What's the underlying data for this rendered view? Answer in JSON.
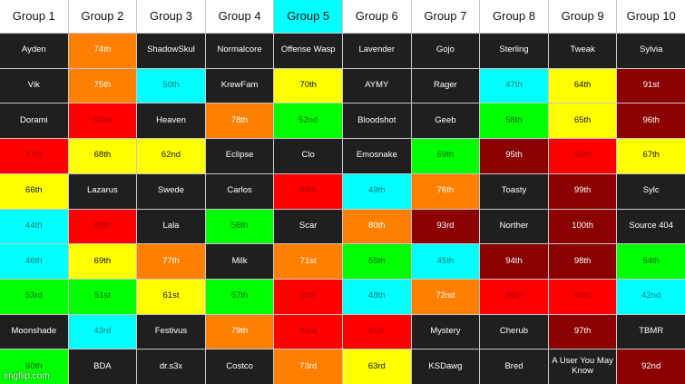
{
  "palette": {
    "dark": "#1f1f1f",
    "orange": "#ff7f00",
    "cyan": "#00ffff",
    "yellow": "#ffff00",
    "green": "#00ff00",
    "red": "#ff0000",
    "maroon": "#8b0000",
    "white": "#ffffff"
  },
  "headers": [
    {
      "label": "Group 1",
      "color": "white"
    },
    {
      "label": "Group 2",
      "color": "white"
    },
    {
      "label": "Group 3",
      "color": "white"
    },
    {
      "label": "Group 4",
      "color": "white"
    },
    {
      "label": "Group 5",
      "color": "cyan"
    },
    {
      "label": "Group 6",
      "color": "white"
    },
    {
      "label": "Group 7",
      "color": "white"
    },
    {
      "label": "Group 8",
      "color": "white"
    },
    {
      "label": "Group 9",
      "color": "white"
    },
    {
      "label": "Group 10",
      "color": "white"
    }
  ],
  "rows": [
    [
      {
        "text": "Ayden",
        "color": "dark"
      },
      {
        "text": "74th",
        "color": "orange"
      },
      {
        "text": "ShadowSkul",
        "color": "dark"
      },
      {
        "text": "Normalcore",
        "color": "dark"
      },
      {
        "text": "Offense Wasp",
        "color": "dark"
      },
      {
        "text": "Lavender",
        "color": "dark"
      },
      {
        "text": "Gojo",
        "color": "dark"
      },
      {
        "text": "Sterling",
        "color": "dark"
      },
      {
        "text": "Tweak",
        "color": "dark"
      },
      {
        "text": "Sylvia",
        "color": "dark"
      }
    ],
    [
      {
        "text": "Vik",
        "color": "dark"
      },
      {
        "text": "75th",
        "color": "orange"
      },
      {
        "text": "50th",
        "color": "cyan"
      },
      {
        "text": "KrewFam",
        "color": "dark"
      },
      {
        "text": "70th",
        "color": "yellow"
      },
      {
        "text": "AYMY",
        "color": "dark"
      },
      {
        "text": "Rager",
        "color": "dark"
      },
      {
        "text": "47th",
        "color": "cyan"
      },
      {
        "text": "64th",
        "color": "yellow"
      },
      {
        "text": "91st",
        "color": "maroon"
      }
    ],
    [
      {
        "text": "Dorami",
        "color": "dark"
      },
      {
        "text": "82nd",
        "color": "red"
      },
      {
        "text": "Heaven",
        "color": "dark"
      },
      {
        "text": "78th",
        "color": "orange"
      },
      {
        "text": "52nd",
        "color": "green"
      },
      {
        "text": "Bloodshot",
        "color": "dark"
      },
      {
        "text": "Geeb",
        "color": "dark"
      },
      {
        "text": "58th",
        "color": "green"
      },
      {
        "text": "65th",
        "color": "yellow"
      },
      {
        "text": "96th",
        "color": "maroon"
      }
    ],
    [
      {
        "text": "87th",
        "color": "red"
      },
      {
        "text": "68th",
        "color": "yellow"
      },
      {
        "text": "62nd",
        "color": "yellow"
      },
      {
        "text": "Eclipse",
        "color": "dark"
      },
      {
        "text": "Clo",
        "color": "dark"
      },
      {
        "text": "Emosnake",
        "color": "dark"
      },
      {
        "text": "59th",
        "color": "green"
      },
      {
        "text": "95th",
        "color": "maroon"
      },
      {
        "text": "86th",
        "color": "red"
      },
      {
        "text": "67th",
        "color": "yellow"
      }
    ],
    [
      {
        "text": "66th",
        "color": "yellow"
      },
      {
        "text": "Lazarus",
        "color": "dark"
      },
      {
        "text": "Swede",
        "color": "dark"
      },
      {
        "text": "Carlos",
        "color": "dark"
      },
      {
        "text": "89th",
        "color": "red"
      },
      {
        "text": "49th",
        "color": "cyan"
      },
      {
        "text": "76th",
        "color": "orange"
      },
      {
        "text": "Toasty",
        "color": "dark"
      },
      {
        "text": "99th",
        "color": "maroon"
      },
      {
        "text": "Sylc",
        "color": "dark"
      }
    ],
    [
      {
        "text": "44th",
        "color": "cyan"
      },
      {
        "text": "88th",
        "color": "red"
      },
      {
        "text": "Lala",
        "color": "dark"
      },
      {
        "text": "56th",
        "color": "green"
      },
      {
        "text": "Scar",
        "color": "dark"
      },
      {
        "text": "80th",
        "color": "orange"
      },
      {
        "text": "93rd",
        "color": "maroon"
      },
      {
        "text": "Norther",
        "color": "dark"
      },
      {
        "text": "100th",
        "color": "maroon"
      },
      {
        "text": "Source 404",
        "color": "dark"
      }
    ],
    [
      {
        "text": "46th",
        "color": "cyan"
      },
      {
        "text": "69th",
        "color": "yellow"
      },
      {
        "text": "77th",
        "color": "orange"
      },
      {
        "text": "Milk",
        "color": "dark"
      },
      {
        "text": "71st",
        "color": "orange"
      },
      {
        "text": "55th",
        "color": "green"
      },
      {
        "text": "45th",
        "color": "cyan"
      },
      {
        "text": "94th",
        "color": "maroon"
      },
      {
        "text": "98th",
        "color": "maroon"
      },
      {
        "text": "54th",
        "color": "green"
      }
    ],
    [
      {
        "text": "53rd",
        "color": "green"
      },
      {
        "text": "51st",
        "color": "green"
      },
      {
        "text": "61st",
        "color": "yellow"
      },
      {
        "text": "57th",
        "color": "green"
      },
      {
        "text": "90th",
        "color": "red"
      },
      {
        "text": "48th",
        "color": "cyan"
      },
      {
        "text": "72nd",
        "color": "orange"
      },
      {
        "text": "85th",
        "color": "red"
      },
      {
        "text": "84th",
        "color": "red"
      },
      {
        "text": "42nd",
        "color": "cyan"
      }
    ],
    [
      {
        "text": "Moonshade",
        "color": "dark"
      },
      {
        "text": "43rd",
        "color": "cyan"
      },
      {
        "text": "Festivus",
        "color": "dark"
      },
      {
        "text": "79th",
        "color": "orange"
      },
      {
        "text": "83rd",
        "color": "red"
      },
      {
        "text": "81st",
        "color": "red"
      },
      {
        "text": "Mystery",
        "color": "dark"
      },
      {
        "text": "Cherub",
        "color": "dark"
      },
      {
        "text": "97th",
        "color": "maroon"
      },
      {
        "text": "TBMR",
        "color": "dark"
      }
    ],
    [
      {
        "text": "60th",
        "color": "green"
      },
      {
        "text": "BDA",
        "color": "dark"
      },
      {
        "text": "dr.s3x",
        "color": "dark"
      },
      {
        "text": "Costco",
        "color": "dark"
      },
      {
        "text": "73rd",
        "color": "orange"
      },
      {
        "text": "63rd",
        "color": "yellow"
      },
      {
        "text": "KSDawg",
        "color": "dark"
      },
      {
        "text": "Bred",
        "color": "dark"
      },
      {
        "text": "A User You May Know",
        "color": "dark"
      },
      {
        "text": "92nd",
        "color": "maroon"
      }
    ]
  ],
  "watermark": "imgflip.com"
}
